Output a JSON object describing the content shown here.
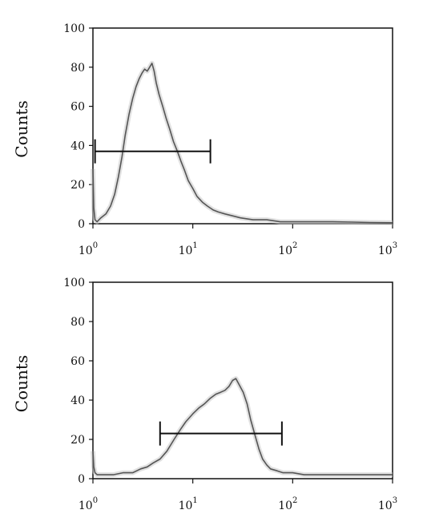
{
  "chart_data": [
    {
      "type": "line",
      "ylabel": "Counts",
      "xscale": "log",
      "xlim": [
        1,
        1000
      ],
      "ylim": [
        0,
        100
      ],
      "yticks": [
        "0",
        "20",
        "40",
        "60",
        "80",
        "100"
      ],
      "xticks": [
        {
          "base": "10",
          "exp": "0"
        },
        {
          "base": "10",
          "exp": "1"
        },
        {
          "base": "10",
          "exp": "2"
        },
        {
          "base": "10",
          "exp": "3"
        }
      ],
      "gate": {
        "x_start": 1.05,
        "x_end": 15.0,
        "y": 37
      },
      "series": [
        {
          "x": [
            1.0,
            1.02,
            1.05,
            1.1,
            1.2,
            1.35,
            1.5,
            1.65,
            1.8,
            1.95,
            2.1,
            2.3,
            2.5,
            2.7,
            2.9,
            3.1,
            3.3,
            3.5,
            3.7,
            3.9,
            4.1,
            4.3,
            4.6,
            5.0,
            5.4,
            5.9,
            6.4,
            7.0,
            7.6,
            8.3,
            9.0,
            10,
            11,
            12.5,
            14,
            16,
            18,
            21,
            25,
            30,
            40,
            55,
            75,
            100,
            150,
            250,
            400,
            600,
            1000
          ],
          "y": [
            28,
            8,
            2,
            1,
            3,
            5,
            9,
            15,
            24,
            34,
            45,
            56,
            64,
            70,
            74,
            77,
            79,
            78,
            80,
            82,
            78,
            72,
            66,
            60,
            54,
            48,
            42,
            37,
            32,
            27,
            22,
            18,
            14,
            11,
            9,
            7,
            6,
            5,
            4,
            3,
            2,
            2,
            1,
            1,
            1,
            1,
            0.8,
            0.6,
            0.5
          ]
        }
      ]
    },
    {
      "type": "line",
      "ylabel": "Counts",
      "xscale": "log",
      "xlim": [
        1,
        1000
      ],
      "ylim": [
        0,
        100
      ],
      "yticks": [
        "0",
        "20",
        "40",
        "60",
        "80",
        "100"
      ],
      "xticks": [
        {
          "base": "10",
          "exp": "0"
        },
        {
          "base": "10",
          "exp": "1"
        },
        {
          "base": "10",
          "exp": "2"
        },
        {
          "base": "10",
          "exp": "3"
        }
      ],
      "gate": {
        "x_start": 4.7,
        "x_end": 78,
        "y": 23
      },
      "series": [
        {
          "x": [
            1.0,
            1.02,
            1.05,
            1.1,
            1.3,
            1.6,
            2.0,
            2.5,
            3.0,
            3.5,
            4.0,
            4.7,
            5.5,
            6.5,
            7.5,
            8.5,
            10,
            11.5,
            13,
            15,
            17,
            19,
            21,
            23,
            25,
            27,
            29,
            32,
            35,
            38,
            42,
            46,
            50,
            55,
            60,
            70,
            80,
            100,
            130,
            170,
            220,
            300,
            400,
            600,
            800,
            1000
          ],
          "y": [
            14,
            6,
            3,
            2,
            2,
            2,
            3,
            3,
            5,
            6,
            8,
            10,
            14,
            20,
            25,
            29,
            33,
            36,
            38,
            41,
            43,
            44,
            45,
            47,
            50,
            51,
            48,
            44,
            38,
            30,
            22,
            15,
            10,
            7,
            5,
            4,
            3,
            3,
            2,
            2,
            2,
            2,
            2,
            2,
            2,
            2
          ]
        }
      ]
    }
  ]
}
